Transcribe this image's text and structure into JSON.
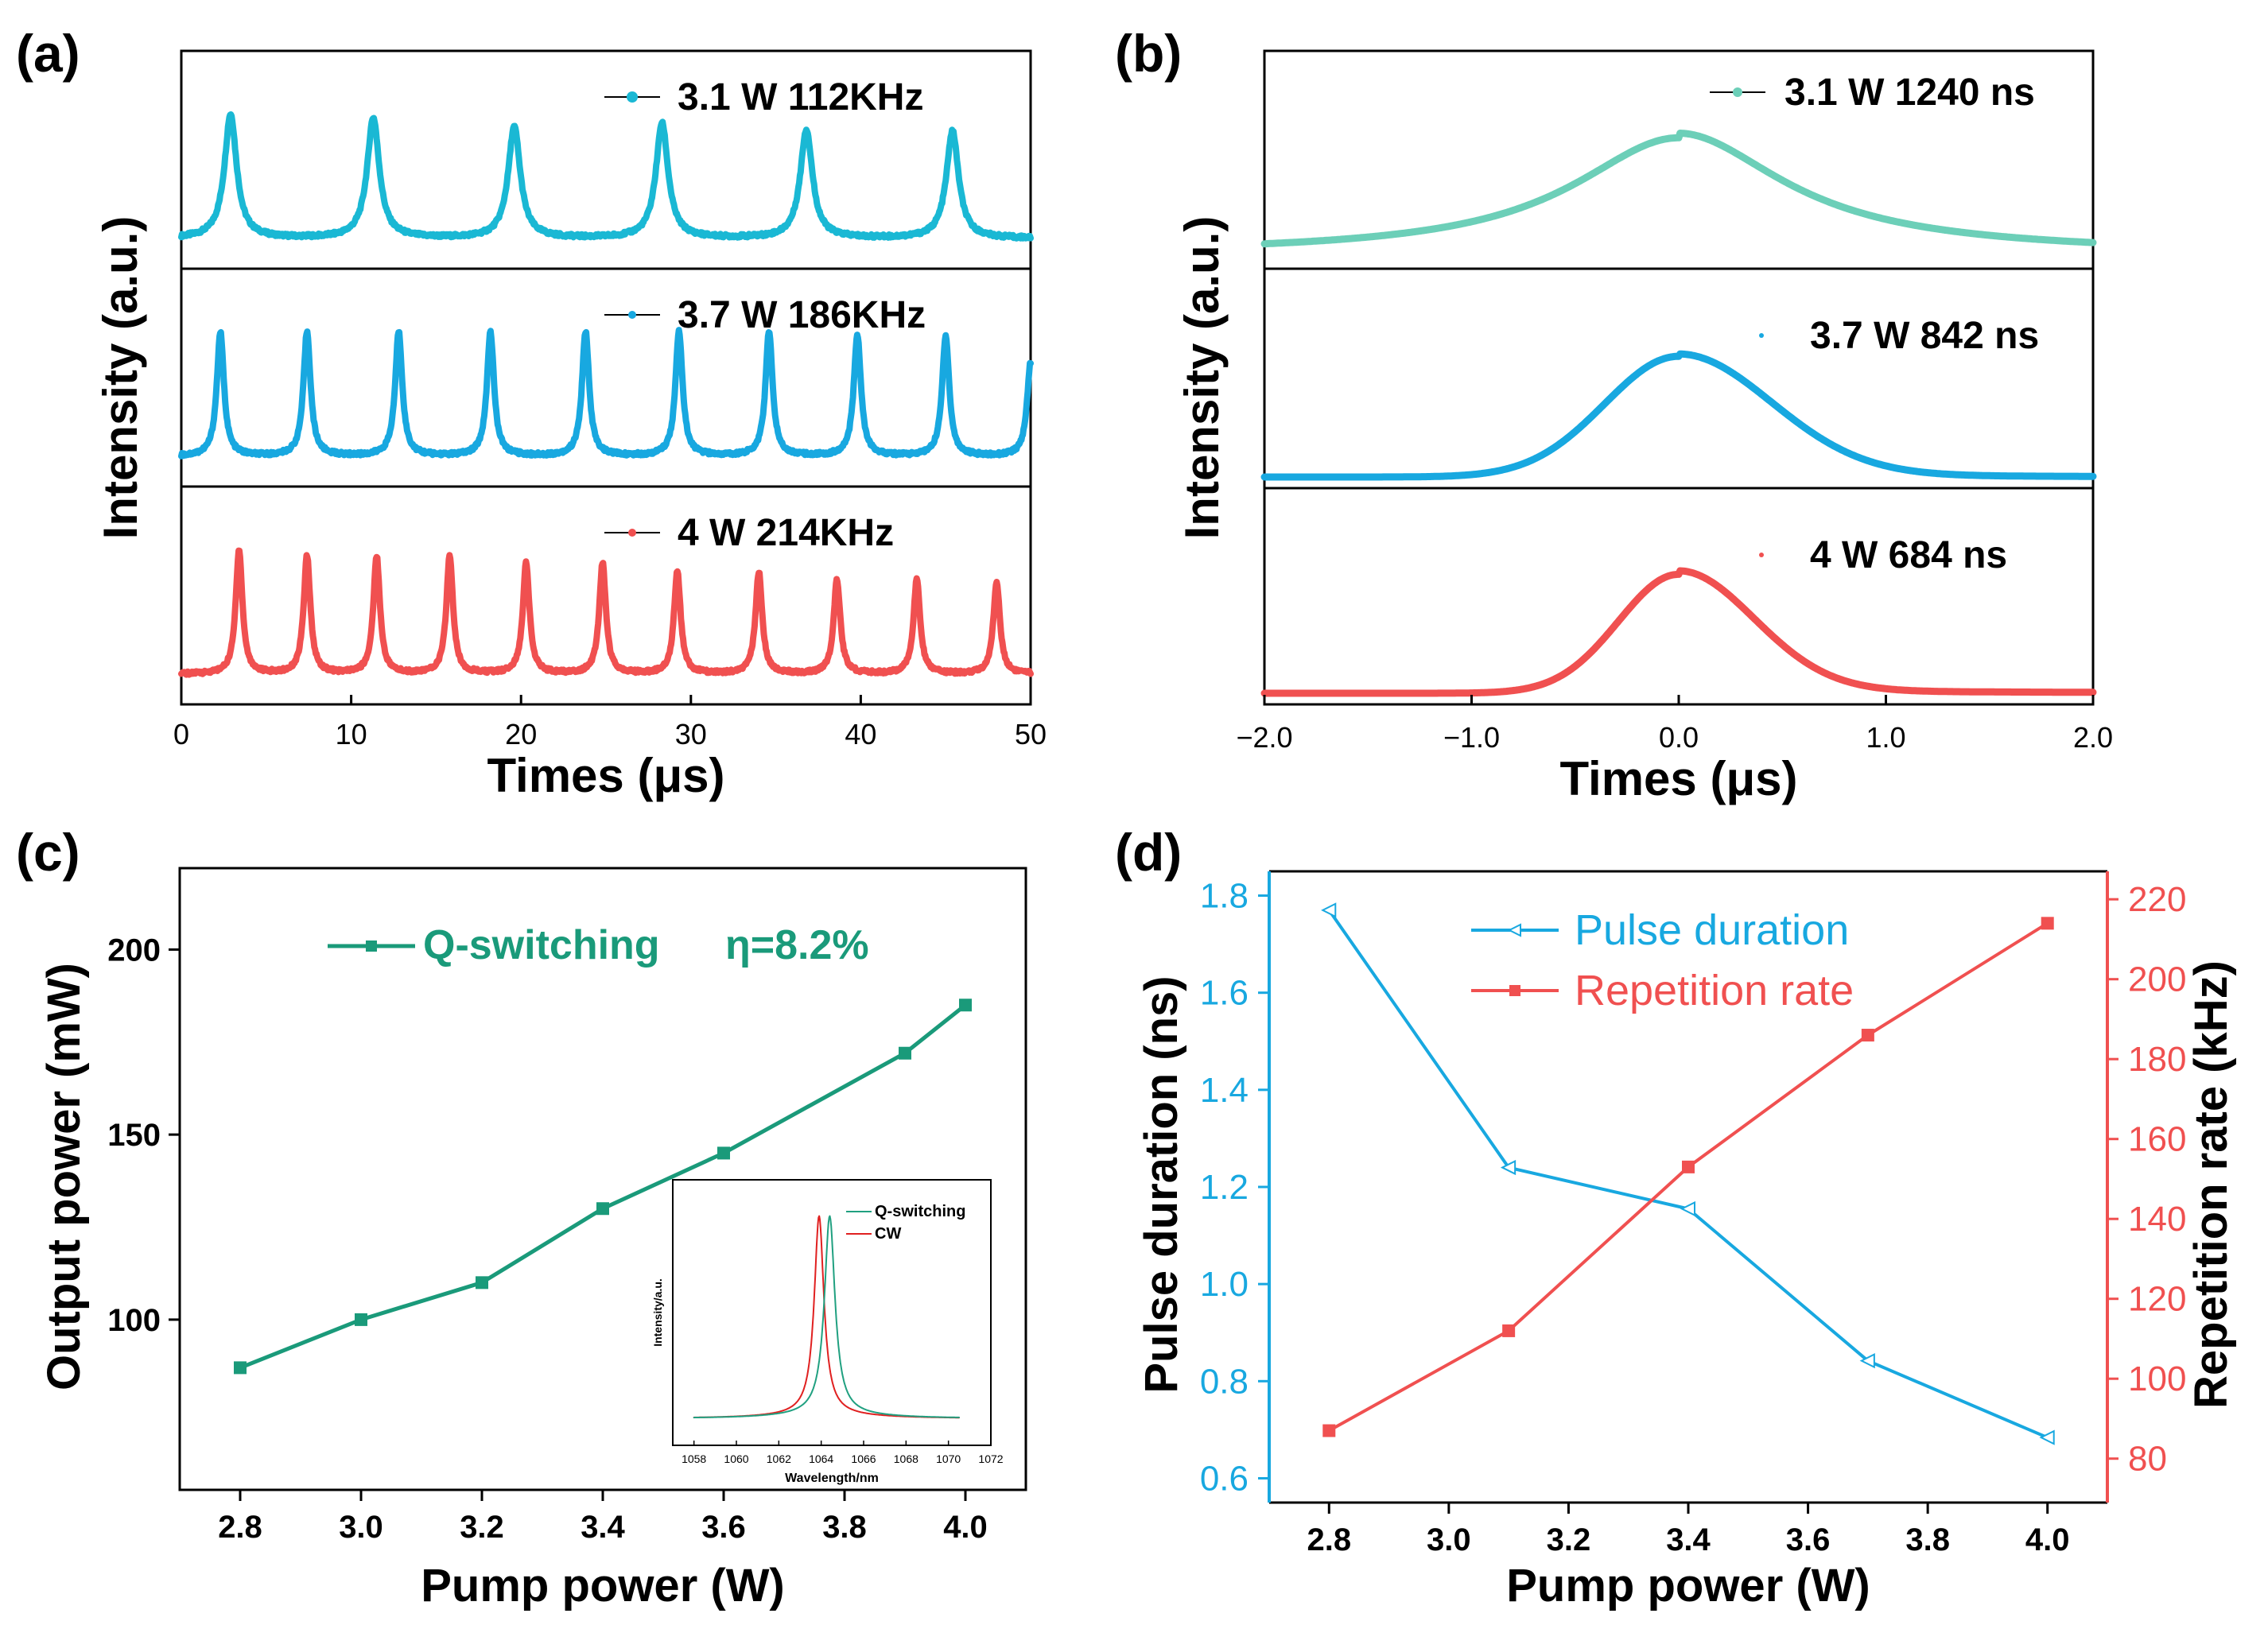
{
  "colors": {
    "cyan_a": "#1ab8d4",
    "blue": "#18a8e0",
    "red": "#f05050",
    "teal_b": "#6ccfb8",
    "green_c": "#1a9a7a",
    "inset_red": "#e02020",
    "inset_green": "#20a080",
    "axis": "#000000"
  },
  "chart_data": [
    {
      "panel": "(a)",
      "type": "line",
      "xlabel": "Times (μs)",
      "ylabel": "Intensity (a.u.)",
      "xlim": [
        0,
        50
      ],
      "xticks": [
        "0",
        "10",
        "20",
        "30",
        "40",
        "50"
      ],
      "series": [
        {
          "name": "3.1 W  112KHz",
          "power": "3.1 W",
          "rate": "112KHz",
          "color": "#1ab8d4",
          "peaks_us": [
            2.9,
            11.3,
            19.6,
            28.3,
            36.8,
            45.4
          ],
          "width_us": 0.55,
          "rel_heights": [
            0.95,
            0.92,
            0.85,
            0.88,
            0.83,
            0.82
          ]
        },
        {
          "name": "3.7 W  186KHz",
          "power": "3.7 W",
          "rate": "186KHz",
          "color": "#18a8e0",
          "peaks_us": [
            2.3,
            7.4,
            12.8,
            18.2,
            23.8,
            29.3,
            34.6,
            39.8,
            45.0,
            50.0
          ],
          "width_us": 0.32,
          "rel_heights": [
            0.95,
            0.95,
            0.95,
            0.95,
            0.95,
            0.95,
            0.95,
            0.93,
            0.92,
            0.72
          ]
        },
        {
          "name": "4  W  214KHz",
          "power": "4  W",
          "rate": "214KHz",
          "color": "#f05050",
          "peaks_us": [
            3.4,
            7.4,
            11.5,
            15.8,
            20.3,
            24.8,
            29.2,
            34.0,
            38.6,
            43.3,
            48.0
          ],
          "width_us": 0.3,
          "rel_heights": [
            0.95,
            0.9,
            0.9,
            0.9,
            0.85,
            0.85,
            0.78,
            0.78,
            0.72,
            0.72,
            0.7
          ]
        }
      ]
    },
    {
      "panel": "(b)",
      "type": "line",
      "xlabel": "Times (μs)",
      "ylabel": "Intensity (a.u.)",
      "xlim": [
        -2.0,
        2.0
      ],
      "xticks": [
        "−2.0",
        "−1.0",
        "0.0",
        "1.0",
        "2.0"
      ],
      "series": [
        {
          "name": "3.1 W  1240 ns",
          "power": "3.1 W",
          "duration": "1240 ns",
          "color": "#6ccfb8",
          "fwhm_us": 1.24,
          "baseline": 0.03,
          "tail": 0.04
        },
        {
          "name": "3.7 W  842 ns",
          "power": "3.7 W",
          "duration": "842 ns",
          "color": "#18a8e0",
          "fwhm_us": 0.842,
          "baseline": 0.0,
          "tail": 0.02
        },
        {
          "name": "4 W  684 ns",
          "power": "4 W",
          "duration": "684 ns",
          "color": "#f05050",
          "fwhm_us": 0.684,
          "baseline": 0.0,
          "tail": 0.03
        }
      ]
    },
    {
      "panel": "(c)",
      "type": "line",
      "xlabel": "Pump power (W)",
      "ylabel": "Output power (mW)",
      "xlim": [
        2.7,
        4.1
      ],
      "ylim": [
        54,
        222
      ],
      "xticks": [
        2.8,
        3.0,
        3.2,
        3.4,
        3.6,
        3.8,
        4.0
      ],
      "yticks": [
        100,
        150,
        200
      ],
      "legend": "Q-switching",
      "annotation": "η=8.2%",
      "x": [
        2.8,
        3.0,
        3.2,
        3.4,
        3.6,
        3.9,
        4.0
      ],
      "y": [
        87,
        100,
        110,
        130,
        145,
        172,
        185
      ],
      "inset": {
        "xlabel": "Wavelength/nm",
        "ylabel": "Intensity/a.u.",
        "xlim": [
          1057,
          1072
        ],
        "xticks": [
          "1058",
          "1060",
          "1062",
          "1064",
          "1066",
          "1068",
          "1070",
          "1072"
        ],
        "legend": [
          "Q-switching",
          "CW"
        ],
        "q_peak_nm": 1064.4,
        "cw_peak_nm": 1063.9
      }
    },
    {
      "panel": "(d)",
      "type": "line",
      "xlabel": "Pump power (W)",
      "ylabel_left": "Pulse duration (ns)",
      "ylabel_right": "Repetition rate (kHz)",
      "xlim": [
        2.7,
        4.1
      ],
      "ylim_left": [
        0.55,
        1.85
      ],
      "ylim_right": [
        69,
        227
      ],
      "xticks": [
        2.8,
        3.0,
        3.2,
        3.4,
        3.6,
        3.8,
        4.0
      ],
      "yticks_left": [
        0.6,
        0.8,
        1.0,
        1.2,
        1.4,
        1.6,
        1.8
      ],
      "yticks_right": [
        80,
        100,
        120,
        140,
        160,
        180,
        200,
        220
      ],
      "series": [
        {
          "name": "Pulse duration",
          "axis": "left",
          "color": "#18a8e0",
          "x": [
            2.8,
            3.1,
            3.4,
            3.7,
            4.0
          ],
          "y": [
            1.77,
            1.24,
            1.155,
            0.842,
            0.684
          ]
        },
        {
          "name": "Repetition rate",
          "axis": "right",
          "color": "#f05050",
          "x": [
            2.8,
            3.1,
            3.4,
            3.7,
            4.0
          ],
          "y": [
            87,
            112,
            153,
            186,
            214
          ]
        }
      ]
    }
  ]
}
